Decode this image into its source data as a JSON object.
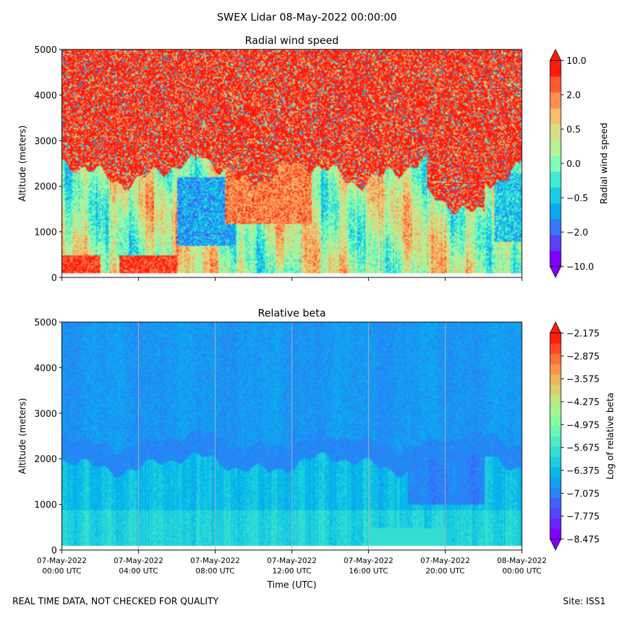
{
  "figure": {
    "suptitle": "SWEX Lidar 08-May-2022 00:00:00",
    "footer_left": "REAL TIME DATA, NOT CHECKED FOR QUALITY",
    "footer_right": "Site: ISS1",
    "xlabel": "Time (UTC)",
    "x_ticks": [
      {
        "hours": 0,
        "line1": "07-May-2022",
        "line2": "00:00 UTC"
      },
      {
        "hours": 4,
        "line1": "07-May-2022",
        "line2": "04:00 UTC"
      },
      {
        "hours": 8,
        "line1": "07-May-2022",
        "line2": "08:00 UTC"
      },
      {
        "hours": 12,
        "line1": "07-May-2022",
        "line2": "12:00 UTC"
      },
      {
        "hours": 16,
        "line1": "07-May-2022",
        "line2": "16:00 UTC"
      },
      {
        "hours": 20,
        "line1": "07-May-2022",
        "line2": "20:00 UTC"
      },
      {
        "hours": 24,
        "line1": "08-May-2022",
        "line2": "00:00 UTC"
      }
    ]
  },
  "chart_data": [
    {
      "type": "heatmap",
      "title": "Radial wind speed",
      "xlabel": "Time (UTC)",
      "ylabel": "Altitude (meters)",
      "xlim": [
        0,
        24
      ],
      "ylim": [
        0,
        5000
      ],
      "y_ticks": [
        0,
        1000,
        2000,
        3000,
        4000,
        5000
      ],
      "grid": false,
      "colorbar": {
        "label": "Radial wind speed",
        "ticks": [
          "10.0",
          "2.0",
          "0.5",
          "0.0",
          "−0.5",
          "−2.0",
          "−10.0"
        ],
        "levels": [
          -10.0,
          -5.0,
          -2.0,
          -1.0,
          -0.5,
          -0.25,
          0.0,
          0.25,
          0.5,
          1.0,
          2.0,
          5.0,
          10.0
        ],
        "colors": [
          "#8000ff",
          "#5a40fc",
          "#3478f9",
          "#0ca8ee",
          "#18cde4",
          "#40ecd4",
          "#80ffb4",
          "#b4f396",
          "#d8dc84",
          "#f6bd6a",
          "#ff8f50",
          "#ff5a2e",
          "#ff1a0e"
        ],
        "extend": "both"
      },
      "noise_above_m": 2300
    },
    {
      "type": "heatmap",
      "title": "Relative beta",
      "xlabel": "Time (UTC)",
      "ylabel": "Altitude (meters)",
      "xlim": [
        0,
        24
      ],
      "ylim": [
        0,
        5000
      ],
      "y_ticks": [
        0,
        1000,
        2000,
        3000,
        4000,
        5000
      ],
      "grid": true,
      "colorbar": {
        "label": "Log of relative beta",
        "ticks": [
          "−2.175",
          "−2.875",
          "−3.575",
          "−4.275",
          "−4.975",
          "−5.675",
          "−6.375",
          "−7.075",
          "−7.775",
          "−8.475"
        ],
        "levels": [
          -9.175,
          -8.825,
          -8.475,
          -8.125,
          -7.775,
          -7.425,
          -7.075,
          -6.725,
          -6.375,
          -6.025,
          -5.675,
          -5.325,
          -4.975,
          -4.625,
          -4.275,
          -3.925,
          -3.575,
          -3.225,
          -2.875,
          -2.525,
          -2.175
        ],
        "colors": [
          "#8000ff",
          "#6a22fe",
          "#5444fd",
          "#3e62fb",
          "#2884f6",
          "#12a0f0",
          "#06b8ea",
          "#1cccdf",
          "#32ded2",
          "#4eecc4",
          "#6af7b3",
          "#86feA2",
          "#a2f690",
          "#bee77c",
          "#d6d06c",
          "#ecb55a",
          "#fc9548",
          "#ff7034",
          "#ff4822",
          "#ff1e0e"
        ],
        "extend": "both"
      },
      "typical_range": "-7.7 to -6.1"
    }
  ]
}
